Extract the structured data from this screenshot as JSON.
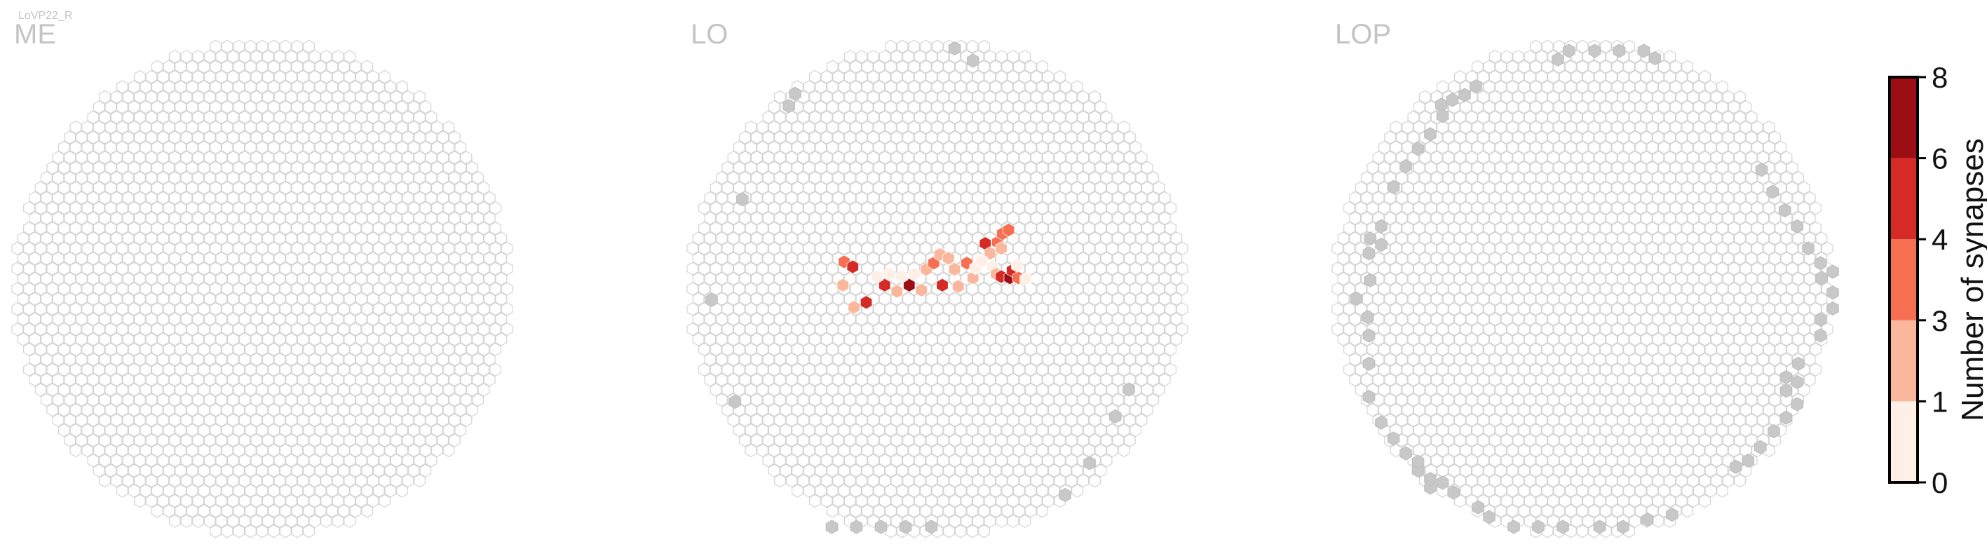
{
  "figure": {
    "cell_type_label": "LoVP22_R"
  },
  "chart_data": {
    "type": "heatmap",
    "title": "",
    "panels": [
      {
        "label": "ME",
        "highlighted_cells": [],
        "unassigned_edge_cells": []
      },
      {
        "label": "LO",
        "highlighted_cells": [
          {
            "x": -7.6,
            "y": 2.2,
            "value": 4
          },
          {
            "x": -6.9,
            "y": 1.8,
            "value": 6
          },
          {
            "x": -7.7,
            "y": 0.3,
            "value": 2
          },
          {
            "x": -6.8,
            "y": -1.5,
            "value": 2
          },
          {
            "x": -5.8,
            "y": -1.1,
            "value": 6
          },
          {
            "x": -4.3,
            "y": 0.3,
            "value": 6
          },
          {
            "x": -3.3,
            "y": -0.2,
            "value": 2
          },
          {
            "x": -2.3,
            "y": 0.3,
            "value": 8
          },
          {
            "x": -1.9,
            "y": 1.2,
            "value": 1
          },
          {
            "x": -1.3,
            "y": -0.1,
            "value": 3
          },
          {
            "x": -0.9,
            "y": 1.6,
            "value": 2
          },
          {
            "x": -0.3,
            "y": 2.1,
            "value": 4
          },
          {
            "x": 0.2,
            "y": 2.8,
            "value": 2
          },
          {
            "x": 0.4,
            "y": 0.3,
            "value": 6
          },
          {
            "x": 0.9,
            "y": 2.5,
            "value": 2
          },
          {
            "x": 1.4,
            "y": 1.6,
            "value": 2
          },
          {
            "x": 1.7,
            "y": 0.2,
            "value": 2
          },
          {
            "x": 2.4,
            "y": 2.1,
            "value": 4
          },
          {
            "x": 2.9,
            "y": 0.9,
            "value": 2
          },
          {
            "x": 3.9,
            "y": 3.7,
            "value": 6
          },
          {
            "x": 4.3,
            "y": 2.9,
            "value": 2
          },
          {
            "x": 4.5,
            "y": 1.8,
            "value": 1
          },
          {
            "x": 4.8,
            "y": 1.2,
            "value": 2
          },
          {
            "x": 4.9,
            "y": 3.8,
            "value": 4
          },
          {
            "x": 5.2,
            "y": 3.3,
            "value": 2
          },
          {
            "x": 5.3,
            "y": 4.5,
            "value": 4
          },
          {
            "x": 5.8,
            "y": 4.8,
            "value": 4
          },
          {
            "x": 5.2,
            "y": 1.0,
            "value": 6
          },
          {
            "x": 5.9,
            "y": 0.9,
            "value": 8
          },
          {
            "x": 6.1,
            "y": 1.5,
            "value": 6
          },
          {
            "x": 6.6,
            "y": 0.9,
            "value": 4
          },
          {
            "x": 6.5,
            "y": 1.9,
            "value": 1
          },
          {
            "x": 7.2,
            "y": 0.8,
            "value": 1
          },
          {
            "x": 3.1,
            "y": 1.7,
            "value": 1
          },
          {
            "x": -4.9,
            "y": 1.0,
            "value": 1
          },
          {
            "x": -3.9,
            "y": 1.2,
            "value": 1
          },
          {
            "x": -2.9,
            "y": 1.0,
            "value": 1
          },
          {
            "x": 3.6,
            "y": 2.3,
            "value": 1
          }
        ],
        "unassigned_edge_cells": [
          {
            "x": 1.4,
            "y": 19.6
          },
          {
            "x": 2.9,
            "y": 18.6
          },
          {
            "x": -11.6,
            "y": 15.9
          },
          {
            "x": -12.1,
            "y": 14.9
          },
          {
            "x": -15.9,
            "y": 7.3
          },
          {
            "x": -18.4,
            "y": -0.9
          },
          {
            "x": -16.5,
            "y": -9.2
          },
          {
            "x": 15.6,
            "y": -8.2
          },
          {
            "x": 14.5,
            "y": -10.4
          },
          {
            "x": 12.4,
            "y": -14.2
          },
          {
            "x": 10.4,
            "y": -16.8
          },
          {
            "x": -8.6,
            "y": -19.4
          },
          {
            "x": -6.6,
            "y": -19.4
          },
          {
            "x": -4.6,
            "y": -19.4
          },
          {
            "x": -2.6,
            "y": -19.4
          },
          {
            "x": -0.5,
            "y": -19.4
          }
        ]
      },
      {
        "label": "LOP",
        "highlighted_cells": [],
        "unassigned_edge_cells": [
          {
            "x": -2.0,
            "y": 18.7
          },
          {
            "x": -1.1,
            "y": 19.4
          },
          {
            "x": 1.0,
            "y": 19.4
          },
          {
            "x": 3.0,
            "y": 19.4
          },
          {
            "x": 5.0,
            "y": 19.4
          },
          {
            "x": 5.9,
            "y": 18.8
          },
          {
            "x": -11.5,
            "y": 15.0
          },
          {
            "x": -10.6,
            "y": 15.4
          },
          {
            "x": -9.6,
            "y": 15.8
          },
          {
            "x": -8.7,
            "y": 16.5
          },
          {
            "x": -11.4,
            "y": 14.1
          },
          {
            "x": -12.4,
            "y": 12.6
          },
          {
            "x": -13.4,
            "y": 11.4
          },
          {
            "x": -14.4,
            "y": 10.0
          },
          {
            "x": -15.4,
            "y": 8.3
          },
          {
            "x": -16.4,
            "y": 5.1
          },
          {
            "x": -17.3,
            "y": 4.1
          },
          {
            "x": -17.4,
            "y": 2.9
          },
          {
            "x": -16.4,
            "y": 3.6
          },
          {
            "x": -17.3,
            "y": 0.7
          },
          {
            "x": -18.4,
            "y": -0.8
          },
          {
            "x": -17.5,
            "y": -2.3
          },
          {
            "x": -17.4,
            "y": -3.8
          },
          {
            "x": -17.4,
            "y": -6.1
          },
          {
            "x": -17.4,
            "y": -8.8
          },
          {
            "x": -16.4,
            "y": -10.9
          },
          {
            "x": -15.4,
            "y": -12.2
          },
          {
            "x": -14.4,
            "y": -13.4
          },
          {
            "x": -13.4,
            "y": -14.8
          },
          {
            "x": -12.4,
            "y": -16.2
          },
          {
            "x": -13.4,
            "y": -14.1
          },
          {
            "x": -12.4,
            "y": -15.5
          },
          {
            "x": -11.4,
            "y": -15.8
          },
          {
            "x": -10.5,
            "y": -16.6
          },
          {
            "x": -8.5,
            "y": -17.8
          },
          {
            "x": -7.6,
            "y": -18.6
          },
          {
            "x": -5.6,
            "y": -19.4
          },
          {
            "x": -3.6,
            "y": -19.4
          },
          {
            "x": -1.6,
            "y": -19.4
          },
          {
            "x": 1.4,
            "y": -19.4
          },
          {
            "x": 3.3,
            "y": -19.4
          },
          {
            "x": 5.3,
            "y": -18.8
          },
          {
            "x": 7.3,
            "y": -18.4
          },
          {
            "x": 12.5,
            "y": -14.5
          },
          {
            "x": 13.5,
            "y": -14.0
          },
          {
            "x": 14.5,
            "y": -12.9
          },
          {
            "x": 15.6,
            "y": -11.6
          },
          {
            "x": 16.6,
            "y": -10.5
          },
          {
            "x": 17.5,
            "y": -9.4
          },
          {
            "x": 16.6,
            "y": -8.3
          },
          {
            "x": 17.5,
            "y": -7.6
          },
          {
            "x": 17.6,
            "y": -6.1
          },
          {
            "x": 16.6,
            "y": -7.2
          },
          {
            "x": 19.4,
            "y": -3.8
          },
          {
            "x": 19.4,
            "y": -2.5
          },
          {
            "x": 20.4,
            "y": -1.6
          },
          {
            "x": 20.4,
            "y": -0.3
          },
          {
            "x": 19.5,
            "y": 0.9
          },
          {
            "x": 20.4,
            "y": 1.4
          },
          {
            "x": 19.4,
            "y": 2.1
          },
          {
            "x": 18.4,
            "y": 3.3
          },
          {
            "x": 17.5,
            "y": 5.1
          },
          {
            "x": 16.5,
            "y": 6.4
          },
          {
            "x": 15.5,
            "y": 7.9
          },
          {
            "x": 14.6,
            "y": 9.7
          }
        ]
      }
    ],
    "colorbar": {
      "label": "Number of synapses",
      "tick_labels": [
        "0",
        "1",
        "3",
        "4",
        "6",
        "8"
      ],
      "bins": [
        {
          "min": 0,
          "max": 1,
          "color": "#FEF0E6"
        },
        {
          "min": 1,
          "max": 3,
          "color": "#FBB79B"
        },
        {
          "min": 3,
          "max": 4,
          "color": "#F66F50"
        },
        {
          "min": 4,
          "max": 6,
          "color": "#D62A26"
        },
        {
          "min": 6,
          "max": 8,
          "color": "#9B0F14"
        }
      ]
    },
    "colors": {
      "empty_cell_stroke": "#d4d4d4",
      "unassigned_cell": "#c8c8c8",
      "panel_label": "#c4c4c4"
    }
  }
}
